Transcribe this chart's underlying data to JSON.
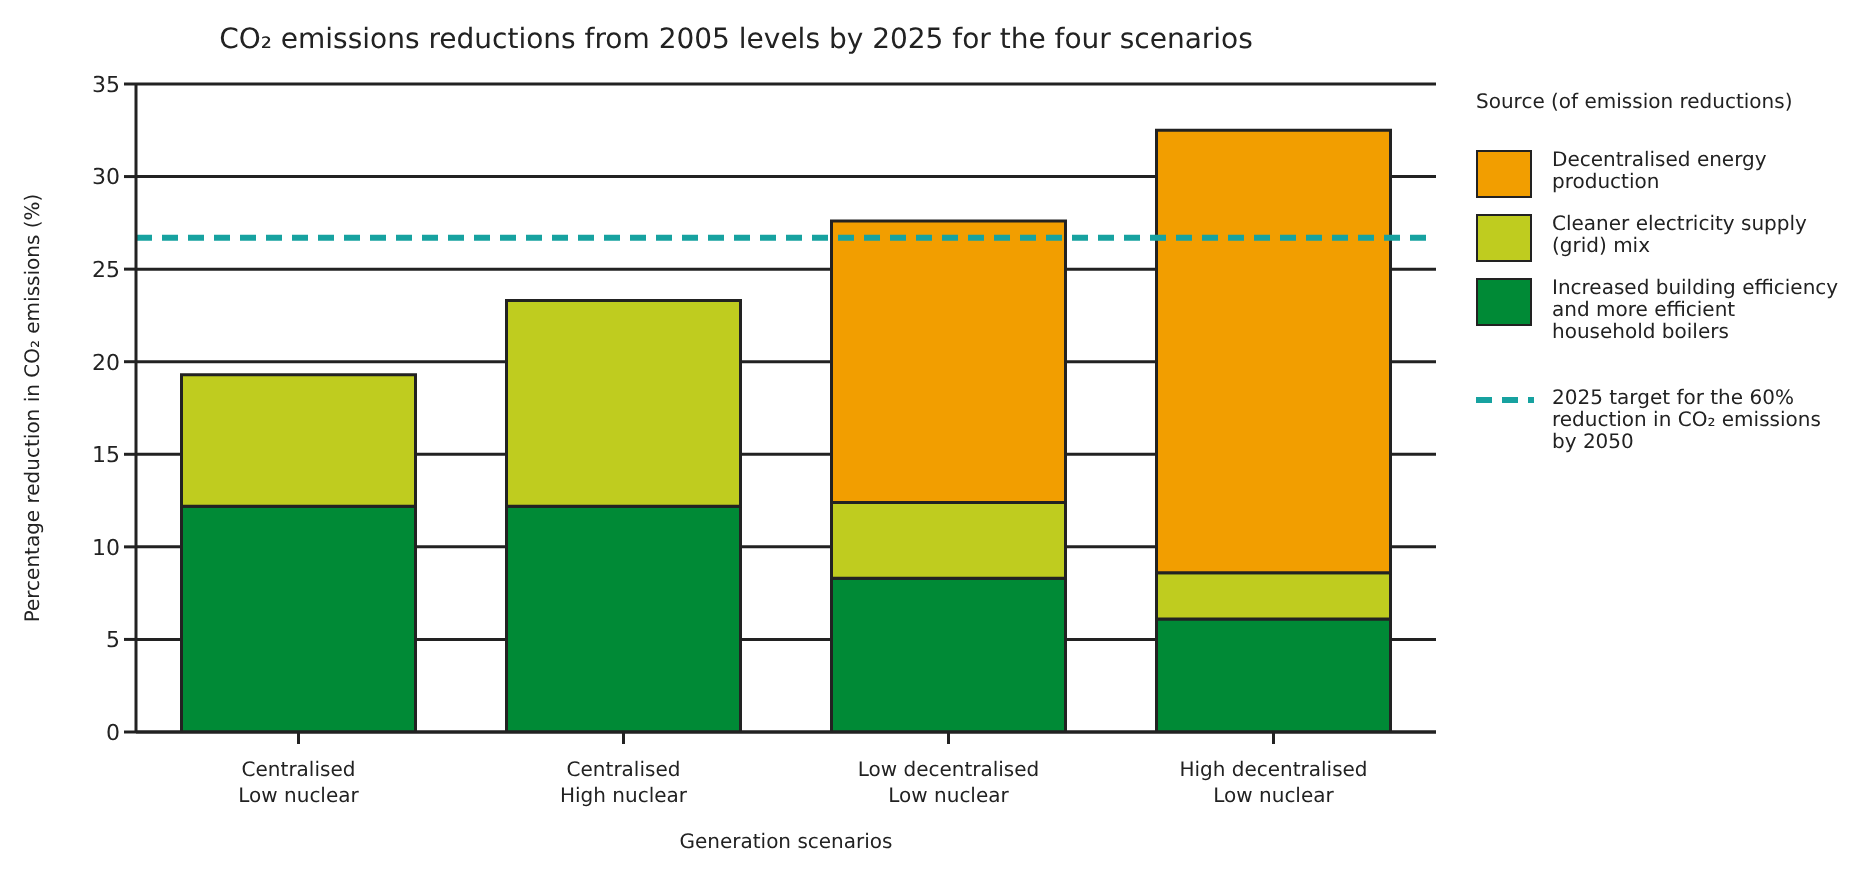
{
  "chart_data": {
    "type": "bar",
    "stacked": true,
    "title": "CO₂ emissions reductions from 2005 levels by 2025 for the four scenarios",
    "xlabel": "Generation scenarios",
    "ylabel": "Percentage reduction in CO₂ emissions (%)",
    "legend_title": "Source (of emission reductions)",
    "categories": [
      "Centralised\nLow nuclear",
      "Centralised\nHigh nuclear",
      "Low decentralised\nLow nuclear",
      "High decentralised\nLow nuclear"
    ],
    "series": [
      {
        "name": "Increased building efficiency and more efficient household boilers",
        "color": "#008a36",
        "values": [
          12.2,
          12.2,
          8.3,
          6.1
        ]
      },
      {
        "name": "Cleaner electricity supply (grid) mix",
        "color": "#bfcc1f",
        "values": [
          7.1,
          11.1,
          4.1,
          2.5
        ]
      },
      {
        "name": "Decentralised energy production",
        "color": "#f29e00",
        "values": [
          null,
          null,
          15.2,
          23.9
        ]
      }
    ],
    "ref_lines": [
      {
        "axis": "y",
        "value": 26.7,
        "label": "2025 target for the 60% reduction in CO₂ emissions by 2050",
        "color": "#17a2a0",
        "line_style": "dashed"
      }
    ],
    "ylim": [
      0,
      35
    ],
    "yticks": [
      0,
      5,
      10,
      15,
      20,
      25,
      30,
      35
    ],
    "grid": "y",
    "legend": "right"
  }
}
